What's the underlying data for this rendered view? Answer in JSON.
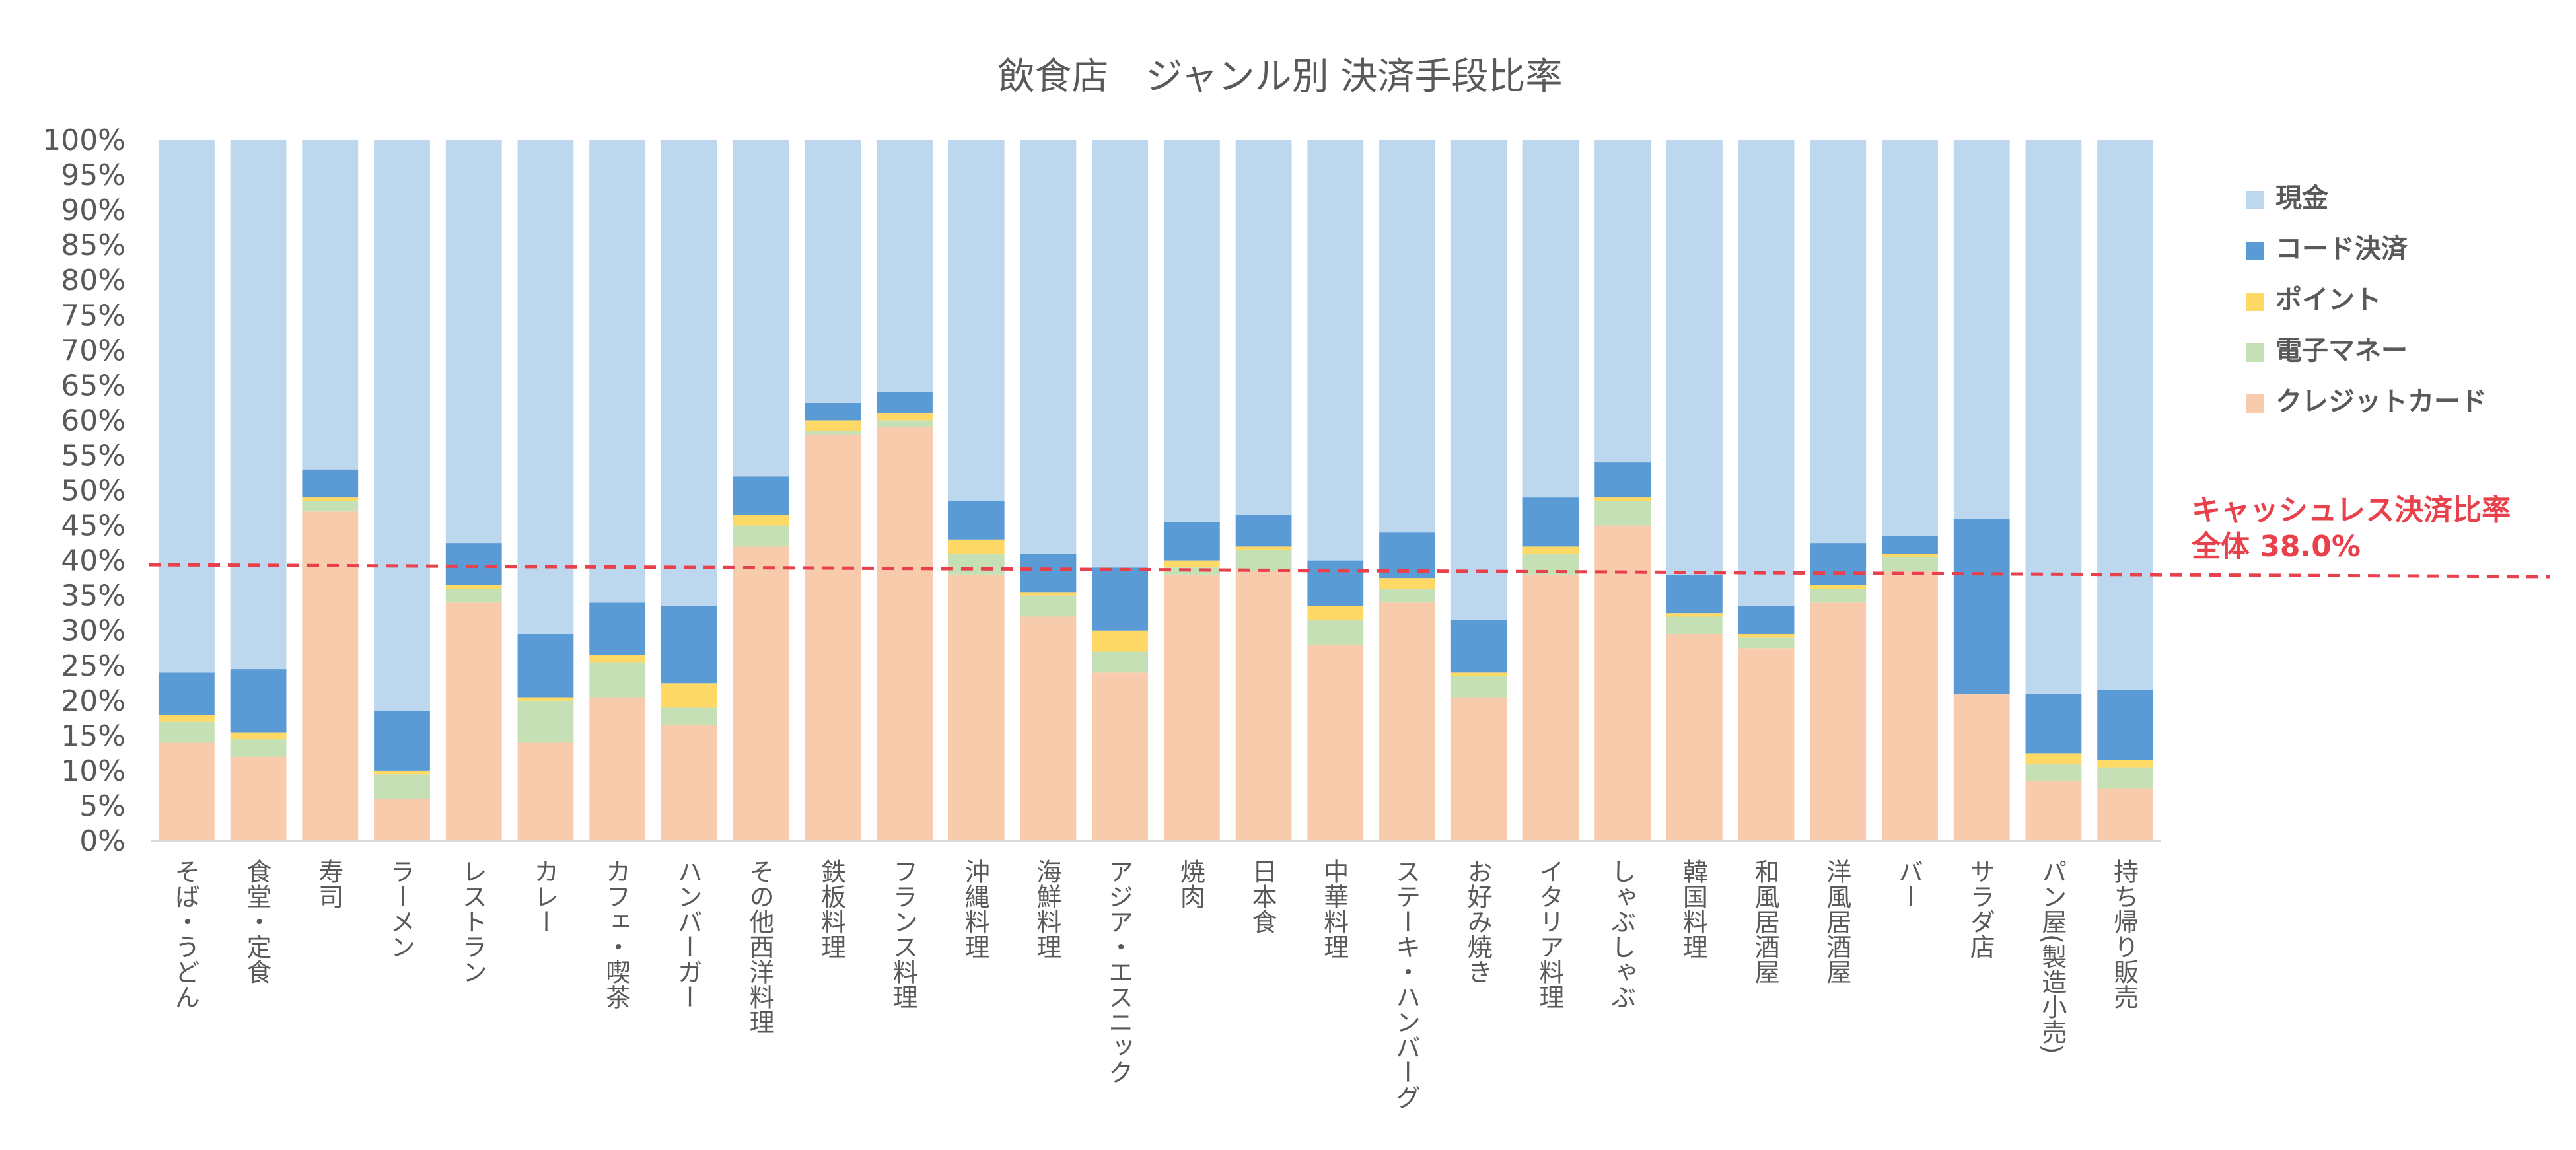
{
  "chart_data": {
    "type": "bar",
    "stacked": true,
    "percent": true,
    "title": "飲食店　ジャンル別 決済手段比率",
    "xlabel": "",
    "ylabel": "",
    "ylim": [
      0,
      100
    ],
    "y_ticks": [
      "0%",
      "5%",
      "10%",
      "15%",
      "20%",
      "25%",
      "30%",
      "35%",
      "40%",
      "45%",
      "50%",
      "55%",
      "60%",
      "65%",
      "70%",
      "75%",
      "80%",
      "85%",
      "90%",
      "95%",
      "100%"
    ],
    "grid": false,
    "legend_position": "right",
    "categories": [
      "そば・うどん",
      "食堂・定食",
      "寿司",
      "ラーメン",
      "レストラン",
      "カレー",
      "カフェ・喫茶",
      "ハンバーガー",
      "その他西洋料理",
      "鉄板料理",
      "フランス料理",
      "沖縄料理",
      "海鮮料理",
      "アジア・エスニック",
      "焼肉",
      "日本食",
      "中華料理",
      "ステーキ・ハンバーグ",
      "お好み焼き",
      "イタリア料理",
      "しゃぶしゃぶ",
      "韓国料理",
      "和風居酒屋",
      "洋風居酒屋",
      "バー",
      "サラダ店",
      "パン屋(製造小売)",
      "持ち帰り販売"
    ],
    "series": [
      {
        "name": "クレジットカード",
        "color": "#f8cbad",
        "values": [
          14,
          12,
          47,
          6,
          34,
          14,
          20.5,
          16.5,
          42,
          58,
          59,
          38,
          32,
          24,
          38,
          38.5,
          28,
          34,
          20.5,
          38,
          45,
          29.5,
          27.5,
          34,
          38.5,
          21,
          8.5,
          7.5
        ]
      },
      {
        "name": "電子マネー",
        "color": "#c5e0b4",
        "values": [
          3,
          2.5,
          1.5,
          3.5,
          2,
          6,
          5,
          2.5,
          3,
          0.5,
          1,
          3,
          3,
          3,
          1,
          3,
          3.5,
          2,
          3,
          3,
          3.5,
          2.5,
          1.5,
          2,
          2,
          0,
          2.5,
          3
        ]
      },
      {
        "name": "ポイント",
        "color": "#ffd966",
        "values": [
          1,
          1,
          0.5,
          0.5,
          0.5,
          0.5,
          1,
          3.5,
          1.5,
          1.5,
          1,
          2,
          0.5,
          3,
          1,
          0.5,
          2,
          1.5,
          0.5,
          1,
          0.5,
          0.5,
          0.5,
          0.5,
          0.5,
          0,
          1.5,
          1
        ]
      },
      {
        "name": "コード決済",
        "color": "#5b9bd5",
        "values": [
          6,
          9,
          4,
          8.5,
          6,
          9,
          7.5,
          11,
          5.5,
          2.5,
          3,
          5.5,
          5.5,
          9,
          5.5,
          4.5,
          6.5,
          6.5,
          7.5,
          7,
          5,
          5.5,
          4,
          6,
          2.5,
          25,
          8.5,
          10
        ]
      },
      {
        "name": "現金",
        "color": "#bdd7ee",
        "values": [
          76,
          75.5,
          47,
          81.5,
          57.5,
          70.5,
          66,
          66.5,
          48,
          37.5,
          36,
          51.5,
          59,
          61,
          54.5,
          53.5,
          60,
          56,
          68.5,
          51,
          46,
          62,
          66.5,
          57.5,
          56.5,
          54,
          79,
          78.5
        ]
      }
    ],
    "legend_order": [
      "現金",
      "コード決済",
      "ポイント",
      "電子マネー",
      "クレジットカード"
    ],
    "reference_line": {
      "value": 38.0,
      "label_line1": "キャッシュレス決済比率",
      "label_line2": "全体 38.0%",
      "color": "#e8414b"
    }
  }
}
